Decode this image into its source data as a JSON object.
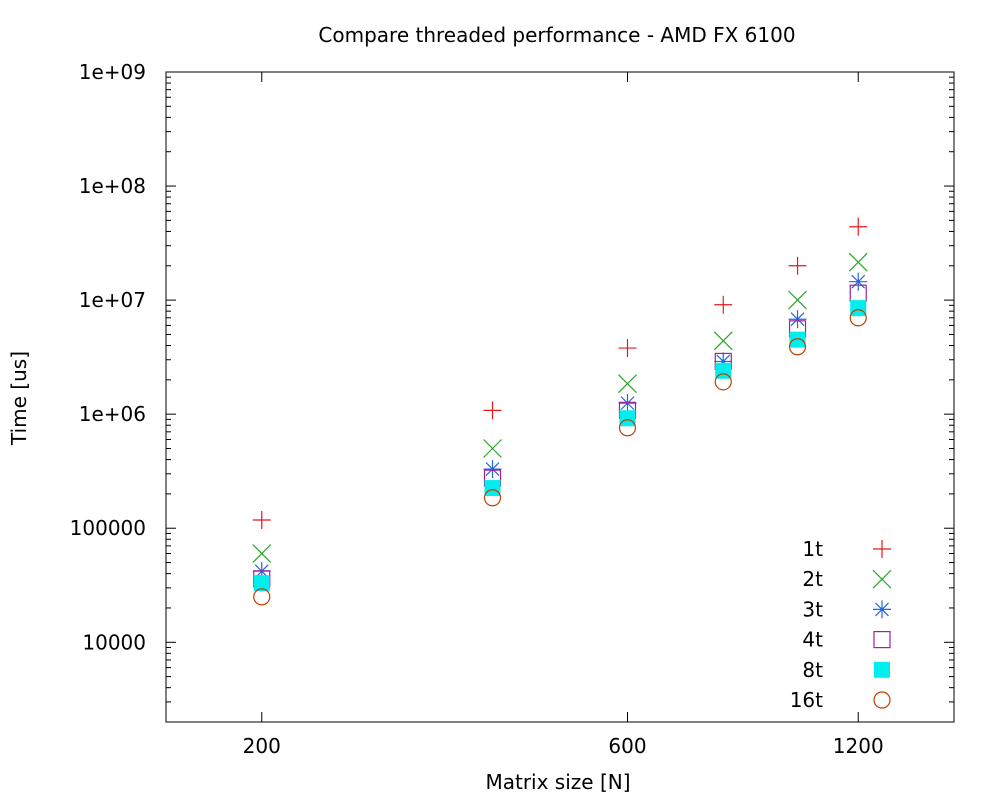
{
  "chart_data": {
    "type": "scatter",
    "title": "Compare threaded performance - AMD FX 6100",
    "xlabel": "Matrix size [N]",
    "ylabel": "Time [us]",
    "x_scale": "log",
    "y_scale": "log",
    "xlim": [
      150,
      1600
    ],
    "ylim": [
      2000,
      1000000000
    ],
    "x_ticks": [
      {
        "value": 200,
        "label": "200"
      },
      {
        "value": 600,
        "label": "600"
      },
      {
        "value": 1200,
        "label": "1200"
      }
    ],
    "y_ticks": [
      {
        "value": 10000,
        "label": "10000"
      },
      {
        "value": 100000,
        "label": "100000"
      },
      {
        "value": 1000000,
        "label": "1e+06"
      },
      {
        "value": 10000000,
        "label": "1e+07"
      },
      {
        "value": 100000000,
        "label": "1e+08"
      },
      {
        "value": 1000000000,
        "label": "1e+09"
      }
    ],
    "grid": false,
    "legend_position": "bottom-right",
    "x": [
      200,
      400,
      600,
      800,
      1000,
      1200
    ],
    "series": [
      {
        "name": "1t",
        "marker": "plus",
        "color": "#e41a1c",
        "values": [
          118000,
          1080000,
          3800000,
          9100000,
          20000000,
          44000000
        ]
      },
      {
        "name": "2t",
        "marker": "cross",
        "color": "#28a428",
        "values": [
          60000,
          500000,
          1850000,
          4400000,
          10000000,
          21500000
        ]
      },
      {
        "name": "3t",
        "marker": "asterisk",
        "color": "#2266dd",
        "values": [
          42000,
          330000,
          1250000,
          2900000,
          6800000,
          14500000
        ]
      },
      {
        "name": "4t",
        "marker": "open-square",
        "color": "#a020a0",
        "values": [
          36000,
          275000,
          1080000,
          2900000,
          5600000,
          11500000
        ]
      },
      {
        "name": "8t",
        "marker": "filled-square",
        "color": "#00eeee",
        "values": [
          33000,
          225000,
          920000,
          2400000,
          4500000,
          8500000
        ]
      },
      {
        "name": "16t",
        "marker": "open-circle",
        "color": "#c04000",
        "values": [
          25000,
          185000,
          760000,
          1920000,
          3900000,
          7000000
        ]
      }
    ]
  }
}
